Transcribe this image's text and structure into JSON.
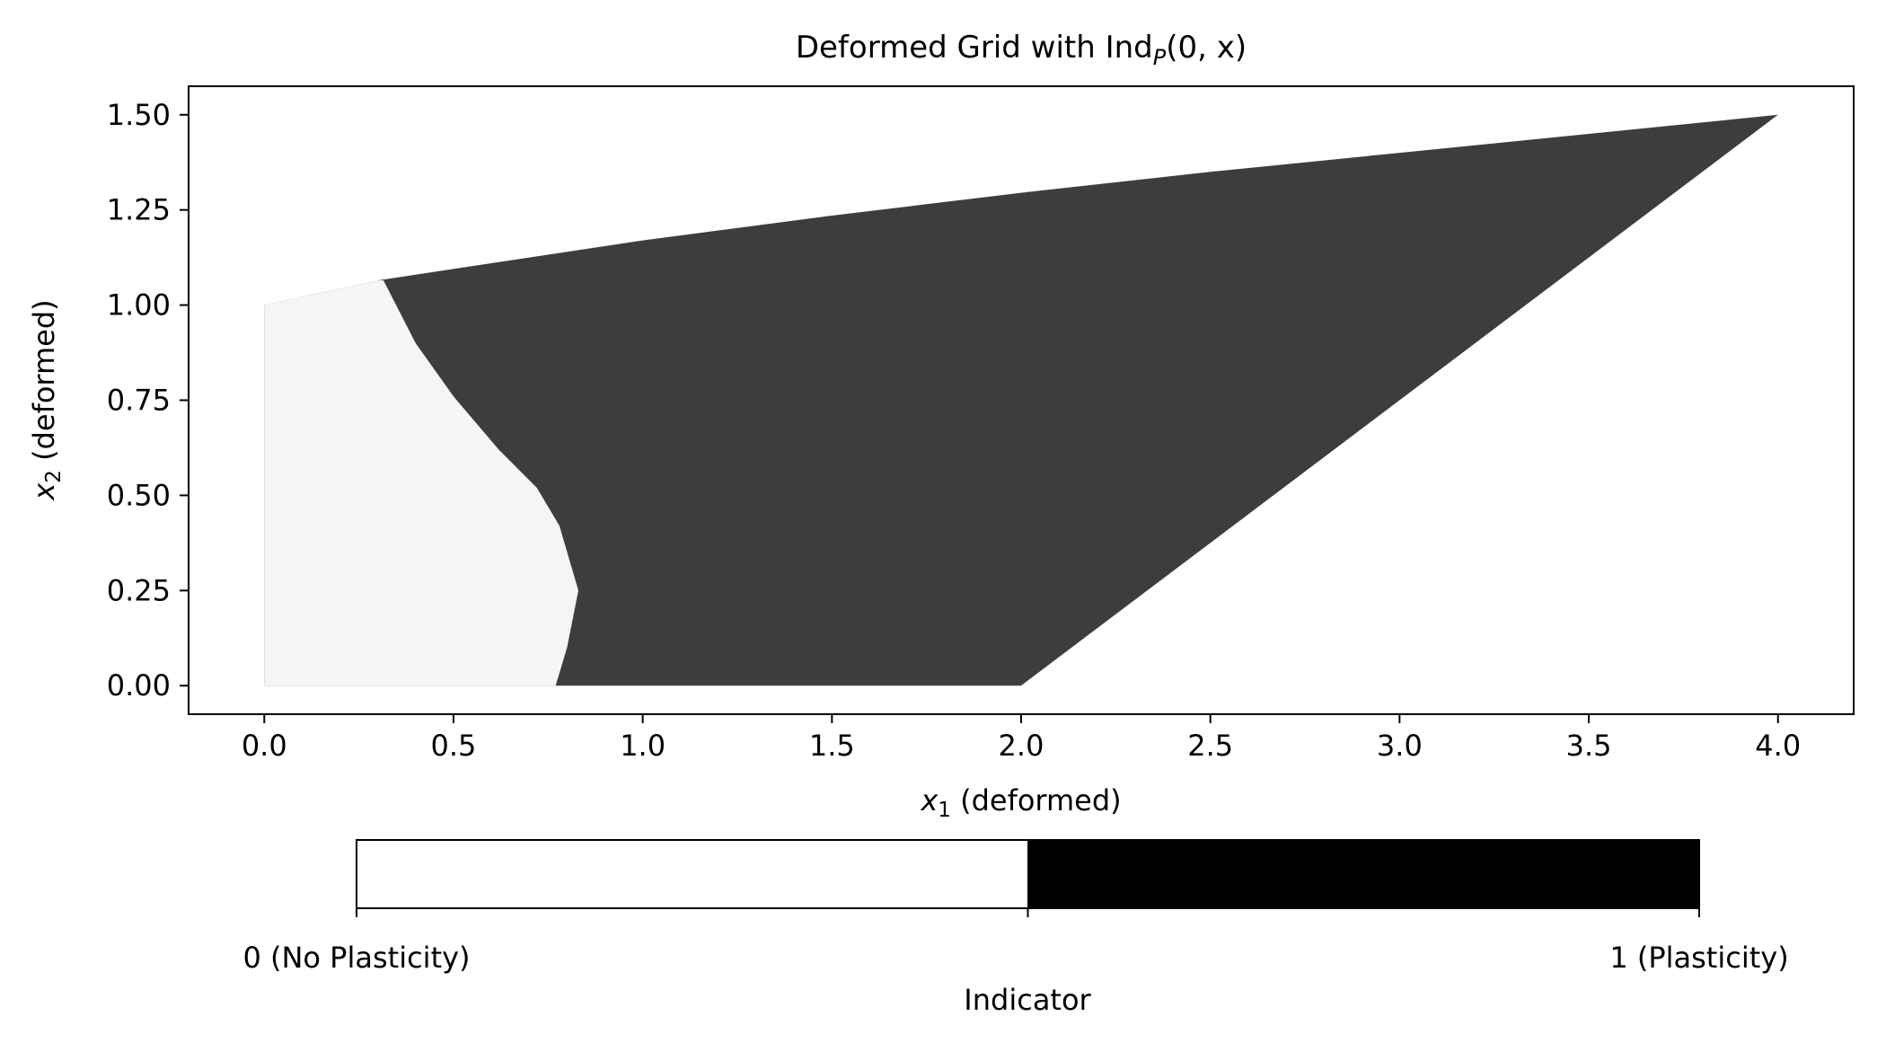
{
  "chart_data": {
    "type": "area",
    "title_main": "Deformed Grid with Ind",
    "title_sub": "P",
    "title_tail": "(0, x)",
    "xlabel_var": "x",
    "xlabel_sub": "1",
    "xlabel_rest": " (deformed)",
    "ylabel_var": "x",
    "ylabel_sub": "2",
    "ylabel_rest": " (deformed)",
    "xlim": [
      -0.2,
      4.2
    ],
    "ylim": [
      -0.075,
      1.575
    ],
    "xticks": [
      0.0,
      0.5,
      1.0,
      1.5,
      2.0,
      2.5,
      3.0,
      3.5,
      4.0
    ],
    "xtick_labels": [
      "0.0",
      "0.5",
      "1.0",
      "1.5",
      "2.0",
      "2.5",
      "3.0",
      "3.5",
      "4.0"
    ],
    "yticks": [
      0.0,
      0.25,
      0.5,
      0.75,
      1.0,
      1.25,
      1.5
    ],
    "ytick_labels": [
      "0.00",
      "0.25",
      "0.50",
      "0.75",
      "1.00",
      "1.25",
      "1.50"
    ],
    "colors": {
      "no_plasticity": "#f5f5f5",
      "plasticity": "#3d3d3d"
    },
    "domain_outline": {
      "top_edge": [
        [
          0.0,
          1.0
        ],
        [
          0.3,
          1.065
        ],
        [
          0.6,
          1.11
        ],
        [
          1.0,
          1.17
        ],
        [
          1.5,
          1.235
        ],
        [
          2.0,
          1.295
        ],
        [
          2.5,
          1.35
        ],
        [
          3.0,
          1.4
        ],
        [
          3.5,
          1.45
        ],
        [
          4.0,
          1.5
        ]
      ],
      "right_edge": [
        [
          4.0,
          1.5
        ],
        [
          2.0,
          0.0
        ]
      ],
      "bottom_edge": [
        [
          2.0,
          0.0
        ],
        [
          0.0,
          0.0
        ]
      ],
      "left_edge": [
        [
          0.0,
          0.0
        ],
        [
          0.0,
          1.0
        ]
      ]
    },
    "plasticity_boundary": [
      [
        0.77,
        0.0
      ],
      [
        0.8,
        0.1
      ],
      [
        0.83,
        0.25
      ],
      [
        0.78,
        0.42
      ],
      [
        0.72,
        0.52
      ],
      [
        0.62,
        0.62
      ],
      [
        0.5,
        0.76
      ],
      [
        0.4,
        0.9
      ],
      [
        0.315,
        1.065
      ]
    ],
    "colorbar": {
      "label": "Indicator",
      "ticks": [
        {
          "value": 0,
          "label": "0 (No Plasticity)"
        },
        {
          "value": 0.5,
          "label": ""
        },
        {
          "value": 1,
          "label": "1 (Plasticity)"
        }
      ],
      "colors": [
        "#ffffff",
        "#000000"
      ]
    }
  }
}
